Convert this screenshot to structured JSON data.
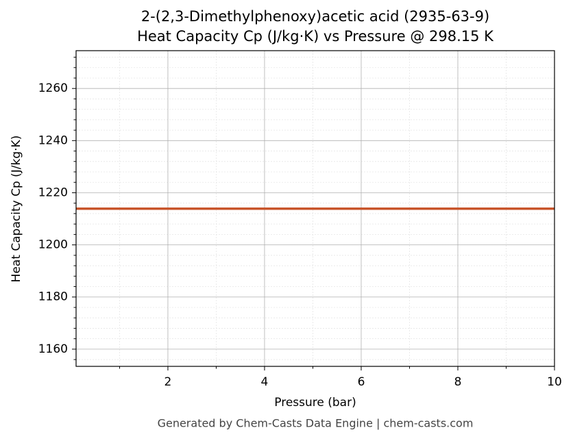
{
  "chart_data": {
    "type": "line",
    "title": "2-(2,3-Dimethylphenoxy)acetic acid (2935-63-9)",
    "subtitle": "Heat Capacity Cp (J/kg·K) vs Pressure @ 298.15 K",
    "x_label": "Pressure (bar)",
    "y_label": "Heat Capacity Cp (J/kg·K)",
    "footer": "Generated by Chem-Casts Data Engine | chem-casts.com",
    "x": [
      0.1,
      10
    ],
    "series": [
      {
        "name": "Cp",
        "color": "#c8552b",
        "values": [
          1213.9,
          1213.9
        ]
      }
    ],
    "xlim": [
      0.1,
      10
    ],
    "xticks": [
      2,
      4,
      6,
      8,
      10
    ],
    "xminorticks": [
      1,
      3,
      5,
      7,
      9
    ],
    "ylim": [
      1153.4,
      1274.5
    ],
    "yticks": [
      1160,
      1180,
      1200,
      1220,
      1240,
      1260
    ],
    "yminorticks": [
      1156,
      1164,
      1168,
      1172,
      1176,
      1184,
      1188,
      1192,
      1196,
      1204,
      1208,
      1212,
      1216,
      1224,
      1228,
      1232,
      1236,
      1244,
      1248,
      1252,
      1256,
      1264,
      1268,
      1272
    ],
    "grid": true
  }
}
